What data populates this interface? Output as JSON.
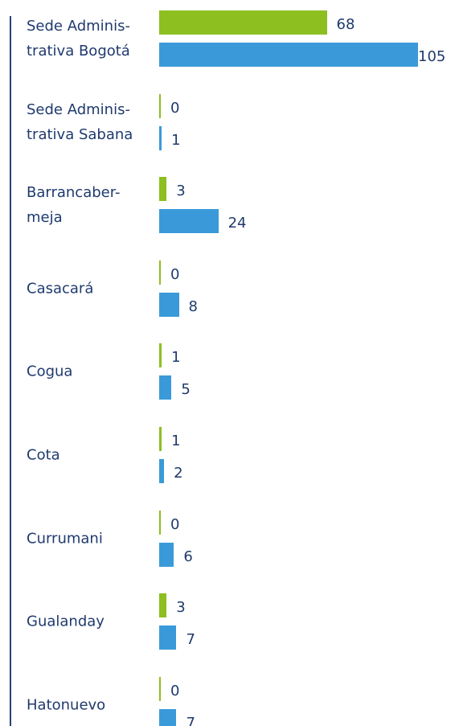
{
  "chart_data": {
    "type": "hbar",
    "categories": [
      "Sede Adminis-\ntrativa Bogotá",
      "Sede Adminis-\ntrativa Sabana",
      "Barrancaber-\nmeja",
      "Casacará",
      "Cogua",
      "Cota",
      "Currumani",
      "Gualanday",
      "Hatonuevo"
    ],
    "series": [
      {
        "color": "#8dbf21",
        "values": [
          68,
          0,
          3,
          0,
          1,
          1,
          0,
          3,
          0
        ]
      },
      {
        "color": "#3a9ad9",
        "values": [
          105,
          1,
          24,
          8,
          5,
          2,
          6,
          7,
          7
        ]
      }
    ],
    "xlim": [
      0,
      105
    ]
  }
}
